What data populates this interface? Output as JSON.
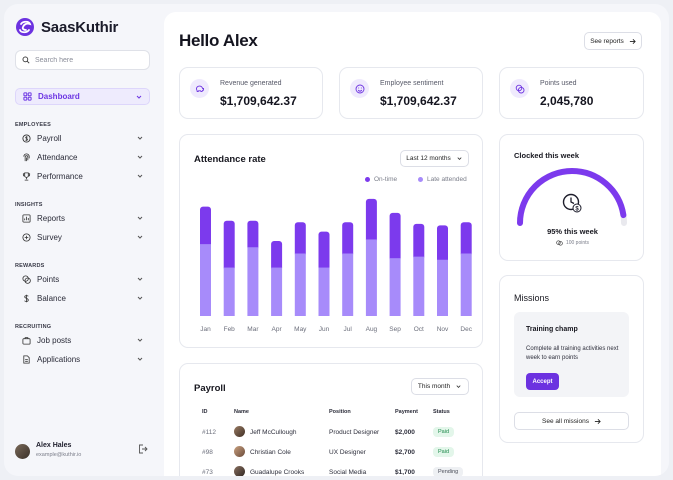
{
  "app": {
    "name": "SaasKuthir",
    "accent": "#6c32e0"
  },
  "search": {
    "placeholder": "Search here"
  },
  "nav": {
    "dashboard": "Dashboard",
    "sections": [
      {
        "title": "EMPLOYEES",
        "items": [
          "Payroll",
          "Attendance",
          "Performance"
        ]
      },
      {
        "title": "INSIGHTS",
        "items": [
          "Reports",
          "Survey"
        ]
      },
      {
        "title": "REWARDS",
        "items": [
          "Points",
          "Balance"
        ]
      },
      {
        "title": "RECRUITING",
        "items": [
          "Job posts",
          "Applications"
        ]
      }
    ]
  },
  "user": {
    "name": "Alex Hales",
    "email": "example@kuthir.io"
  },
  "header": {
    "greeting": "Hello Alex",
    "see_reports": "See reports"
  },
  "stats": [
    {
      "label": "Revenue generated",
      "value": "$1,709,642.37",
      "icon": "piggy-bank-icon"
    },
    {
      "label": "Employee sentiment",
      "value": "$1,709,642.37",
      "icon": "smile-icon"
    },
    {
      "label": "Points used",
      "value": "2,045,780",
      "icon": "coins-icon"
    }
  ],
  "attendance": {
    "title": "Attendance rate",
    "filter": "Last 12 months",
    "legend": {
      "on_time": "On-time",
      "late": "Late attended"
    },
    "colors": {
      "on_time": "#7c3aed",
      "late": "#a78bfa"
    }
  },
  "chart_data": {
    "type": "bar",
    "categories": [
      "Jan",
      "Feb",
      "Mar",
      "Apr",
      "May",
      "Jun",
      "Jul",
      "Aug",
      "Sep",
      "Oct",
      "Nov",
      "Dec"
    ],
    "series": [
      {
        "name": "On-time",
        "values": [
          46,
          31,
          44,
          31,
          40,
          31,
          40,
          49,
          37,
          38,
          36,
          40
        ]
      },
      {
        "name": "Late attended",
        "values": [
          70,
          61,
          61,
          48,
          60,
          54,
          60,
          75,
          66,
          59,
          58,
          60
        ]
      }
    ]
  },
  "clocked": {
    "title": "Clocked this week",
    "percent": 0.95,
    "label": "95% this week",
    "points": "100 points"
  },
  "payroll": {
    "title": "Payroll",
    "filter": "This month",
    "columns": [
      "ID",
      "Name",
      "Position",
      "Payment",
      "Status"
    ],
    "rows": [
      {
        "id": "#112",
        "name": "Jeff McCullough",
        "position": "Product Designer",
        "payment": "$2,000",
        "status": "Paid"
      },
      {
        "id": "#98",
        "name": "Christian Cole",
        "position": "UX Designer",
        "payment": "$2,700",
        "status": "Paid"
      },
      {
        "id": "#73",
        "name": "Guadalupe Crooks",
        "position": "Social Media",
        "payment": "$1,700",
        "status": "Pending"
      }
    ]
  },
  "missions": {
    "title": "Missions",
    "card_title": "Training champ",
    "card_text": "Complete all training activities next week to earn points",
    "accept": "Accept",
    "see_all": "See all missions"
  }
}
